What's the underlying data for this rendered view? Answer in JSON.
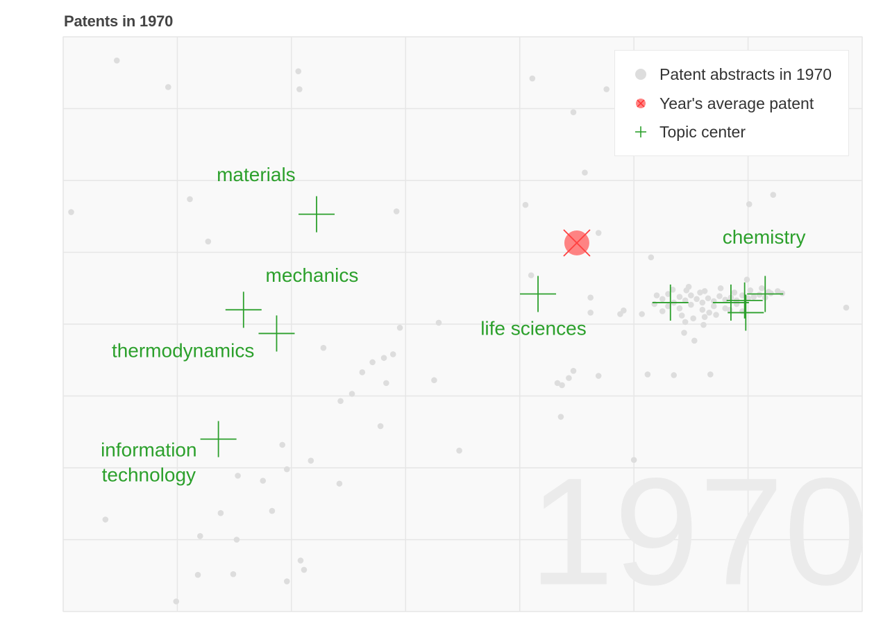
{
  "chart_title": "Patents in 1970",
  "chart_data": {
    "type": "scatter",
    "title": "Patents in 1970",
    "xlabel": "",
    "ylabel": "",
    "grid": true,
    "legend_position": "top-right",
    "xlim": [
      0,
      7
    ],
    "ylim": [
      0,
      8
    ],
    "watermark_year": "1970",
    "colors": {
      "background": "#f9f9f9",
      "grid": "#e6e6e6",
      "patent": "#dddddd",
      "average": "#ff6f6f",
      "average_edge": "#ff4040",
      "topic": "#2ca02c",
      "watermark": "#ebebeb"
    },
    "series": [
      {
        "name": "Patent abstracts in 1970",
        "marker": "dot",
        "points": [
          [
            0.47,
            7.67
          ],
          [
            0.92,
            7.3
          ],
          [
            2.06,
            7.52
          ],
          [
            2.07,
            7.27
          ],
          [
            4.11,
            7.42
          ],
          [
            4.76,
            7.27
          ],
          [
            4.47,
            6.95
          ],
          [
            4.57,
            6.11
          ],
          [
            0.07,
            5.56
          ],
          [
            1.11,
            5.74
          ],
          [
            1.27,
            5.15
          ],
          [
            2.92,
            5.57
          ],
          [
            4.05,
            5.66
          ],
          [
            6.22,
            5.8
          ],
          [
            6.01,
            5.67
          ],
          [
            4.69,
            5.27
          ],
          [
            5.15,
            4.93
          ],
          [
            4.1,
            4.68
          ],
          [
            6.26,
            4.46
          ],
          [
            6.3,
            4.43
          ],
          [
            6.86,
            4.23
          ],
          [
            4.91,
            4.19
          ],
          [
            4.62,
            4.16
          ],
          [
            4.88,
            4.14
          ],
          [
            4.62,
            4.37
          ],
          [
            5.07,
            4.14
          ],
          [
            5.99,
            4.62
          ],
          [
            5.45,
            4.03
          ],
          [
            5.44,
            3.88
          ],
          [
            5.53,
            3.77
          ],
          [
            5.61,
            3.99
          ],
          [
            3.29,
            4.02
          ],
          [
            2.95,
            3.95
          ],
          [
            2.28,
            3.67
          ],
          [
            2.89,
            3.58
          ],
          [
            2.81,
            3.53
          ],
          [
            2.71,
            3.47
          ],
          [
            2.62,
            3.33
          ],
          [
            2.83,
            3.18
          ],
          [
            3.25,
            3.22
          ],
          [
            2.53,
            3.03
          ],
          [
            2.43,
            2.93
          ],
          [
            4.69,
            3.28
          ],
          [
            4.47,
            3.35
          ],
          [
            4.43,
            3.25
          ],
          [
            4.33,
            3.18
          ],
          [
            4.37,
            3.15
          ],
          [
            5.12,
            3.3
          ],
          [
            5.35,
            3.29
          ],
          [
            5.67,
            3.3
          ],
          [
            2.78,
            2.58
          ],
          [
            4.36,
            2.71
          ],
          [
            3.47,
            2.24
          ],
          [
            5.0,
            2.11
          ],
          [
            1.92,
            2.32
          ],
          [
            2.17,
            2.1
          ],
          [
            1.96,
            1.98
          ],
          [
            1.53,
            1.89
          ],
          [
            1.75,
            1.82
          ],
          [
            2.42,
            1.78
          ],
          [
            1.83,
            1.4
          ],
          [
            0.37,
            1.28
          ],
          [
            1.38,
            1.37
          ],
          [
            1.2,
            1.05
          ],
          [
            1.52,
            1.0
          ],
          [
            1.18,
            0.51
          ],
          [
            1.49,
            0.52
          ],
          [
            2.08,
            0.71
          ],
          [
            2.11,
            0.58
          ],
          [
            1.96,
            0.42
          ],
          [
            0.99,
            0.14
          ],
          [
            5.2,
            4.4
          ],
          [
            5.25,
            4.35
          ],
          [
            5.3,
            4.42
          ],
          [
            5.35,
            4.3
          ],
          [
            5.4,
            4.38
          ],
          [
            5.45,
            4.33
          ],
          [
            5.5,
            4.4
          ],
          [
            5.55,
            4.35
          ],
          [
            5.6,
            4.3
          ],
          [
            5.65,
            4.36
          ],
          [
            5.7,
            4.32
          ],
          [
            5.75,
            4.39
          ],
          [
            5.8,
            4.34
          ],
          [
            5.85,
            4.37
          ],
          [
            5.9,
            4.33
          ],
          [
            5.95,
            4.4
          ],
          [
            6.0,
            4.36
          ],
          [
            6.05,
            4.38
          ],
          [
            6.1,
            4.41
          ],
          [
            6.15,
            4.37
          ],
          [
            6.2,
            4.43
          ],
          [
            5.3,
            4.25
          ],
          [
            5.4,
            4.22
          ],
          [
            5.5,
            4.27
          ],
          [
            5.6,
            4.2
          ],
          [
            5.7,
            4.25
          ],
          [
            5.8,
            4.22
          ],
          [
            5.9,
            4.28
          ],
          [
            5.42,
            4.12
          ],
          [
            5.52,
            4.08
          ],
          [
            5.62,
            4.1
          ],
          [
            5.72,
            4.13
          ],
          [
            5.34,
            4.48
          ],
          [
            5.48,
            4.52
          ],
          [
            5.62,
            4.46
          ],
          [
            5.76,
            4.5
          ],
          [
            5.88,
            4.44
          ],
          [
            6.02,
            4.47
          ],
          [
            6.12,
            4.5
          ],
          [
            5.25,
            4.18
          ],
          [
            5.18,
            4.28
          ],
          [
            5.95,
            4.18
          ],
          [
            5.84,
            4.2
          ],
          [
            5.66,
            4.16
          ],
          [
            6.18,
            4.45
          ],
          [
            5.58,
            4.44
          ],
          [
            5.46,
            4.47
          ]
        ]
      },
      {
        "name": "Year's average patent",
        "marker": "circle-x",
        "points": [
          [
            4.5,
            5.13
          ]
        ]
      },
      {
        "name": "Topic center",
        "marker": "plus",
        "points": [
          {
            "label": "materials",
            "x": 2.22,
            "y": 5.53
          },
          {
            "label": "mechanics",
            "x": 1.58,
            "y": 4.2
          },
          {
            "label": "thermodynamics",
            "x": 1.87,
            "y": 3.87
          },
          {
            "label": "information technology",
            "x": 1.36,
            "y": 2.4
          },
          {
            "label": "life sciences",
            "x": 4.16,
            "y": 4.42
          },
          {
            "label": "chemistry",
            "x": 6.15,
            "y": 4.42
          },
          {
            "label": "",
            "x": 5.32,
            "y": 4.3
          },
          {
            "label": "",
            "x": 5.98,
            "y": 4.16
          },
          {
            "label": "",
            "x": 5.97,
            "y": 4.33
          },
          {
            "label": "",
            "x": 5.85,
            "y": 4.3
          }
        ]
      }
    ],
    "annotations": [
      {
        "text": [
          "materials"
        ],
        "x": 1.69,
        "y": 5.99,
        "anchor": "middle"
      },
      {
        "text": [
          "mechanics"
        ],
        "x": 2.18,
        "y": 4.59,
        "anchor": "middle"
      },
      {
        "text": [
          "thermodynamics"
        ],
        "x": 1.05,
        "y": 3.54,
        "anchor": "middle"
      },
      {
        "text": [
          "information",
          "technology"
        ],
        "x": 0.75,
        "y": 2.16,
        "anchor": "middle"
      },
      {
        "text": [
          "life sciences"
        ],
        "x": 4.12,
        "y": 3.85,
        "anchor": "middle"
      },
      {
        "text": [
          "chemistry"
        ],
        "x": 6.14,
        "y": 5.12,
        "anchor": "middle"
      }
    ]
  },
  "legend": {
    "items": [
      {
        "label": "Patent abstracts in 1970",
        "marker": "dot"
      },
      {
        "label": "Year's average patent",
        "marker": "circle-x"
      },
      {
        "label": "Topic center",
        "marker": "plus"
      }
    ]
  }
}
